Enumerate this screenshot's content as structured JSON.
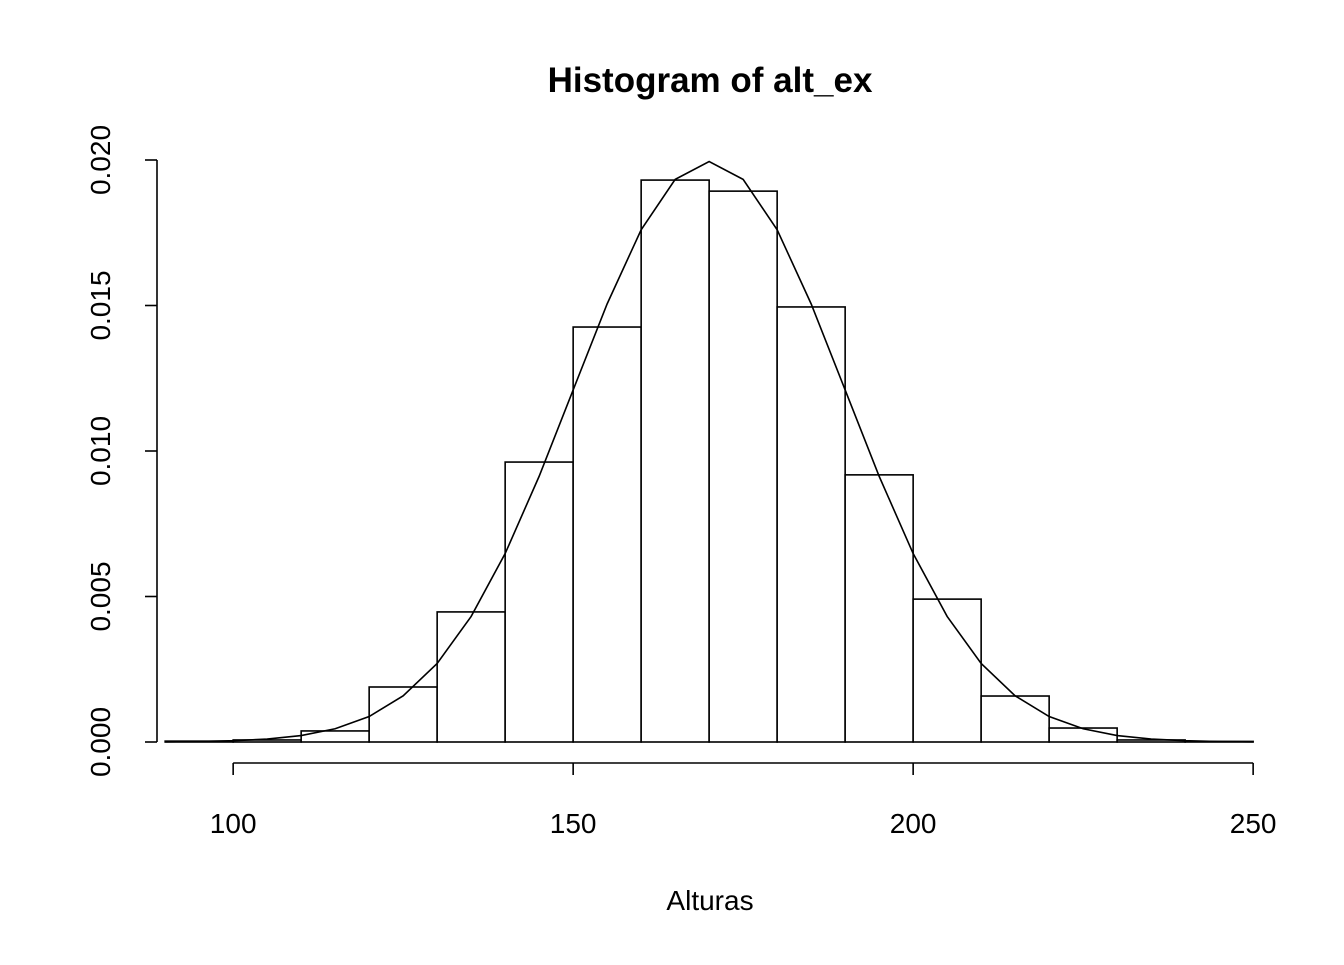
{
  "chart_data": {
    "type": "histogram",
    "title": "Histogram of alt_ex",
    "x_label": "Alturas",
    "bins": [
      90,
      100,
      110,
      120,
      130,
      140,
      150,
      160,
      170,
      180,
      190,
      200,
      210,
      220,
      230,
      240,
      250
    ],
    "values": [
      3e-05,
      7e-05,
      0.00038,
      0.00189,
      0.00447,
      0.00962,
      0.01426,
      0.01931,
      0.01893,
      0.01495,
      0.00918,
      0.00491,
      0.00158,
      0.00048,
      7e-05,
      2e-05
    ],
    "color": "#ffffff",
    "curve": {
      "x": [
        90,
        95,
        100,
        105,
        110,
        115,
        120,
        125,
        130,
        135,
        140,
        145,
        150,
        155,
        160,
        165,
        170,
        175,
        180,
        185,
        190,
        195,
        200,
        205,
        210,
        215,
        220,
        225,
        230,
        235,
        240,
        245,
        250
      ],
      "y": [
        6.7e-06,
        1.76e-05,
        4.36e-05,
        0.0001015,
        0.0002216,
        0.000455,
        0.000876,
        0.001587,
        0.0027,
        0.004315,
        0.006476,
        0.009132,
        0.012098,
        0.015056,
        0.017603,
        0.019333,
        0.019947,
        0.019333,
        0.017603,
        0.015056,
        0.012098,
        0.009132,
        0.006476,
        0.004315,
        0.0027,
        0.001587,
        0.000876,
        0.000455,
        0.0002216,
        0.0001015,
        4.36e-05,
        1.76e-05,
        6.7e-06
      ],
      "color": "#000000"
    },
    "xlim": [
      88.8,
      251.2
    ],
    "xticks": [
      100,
      150,
      200,
      250
    ],
    "ylim": [
      0,
      0.02
    ],
    "yticks": [
      {
        "value": 0,
        "label": "0.000"
      },
      0.005,
      {
        "value": 0.01,
        "label": "0.010"
      },
      0.015,
      {
        "value": 0.02,
        "label": "0.020"
      }
    ]
  }
}
